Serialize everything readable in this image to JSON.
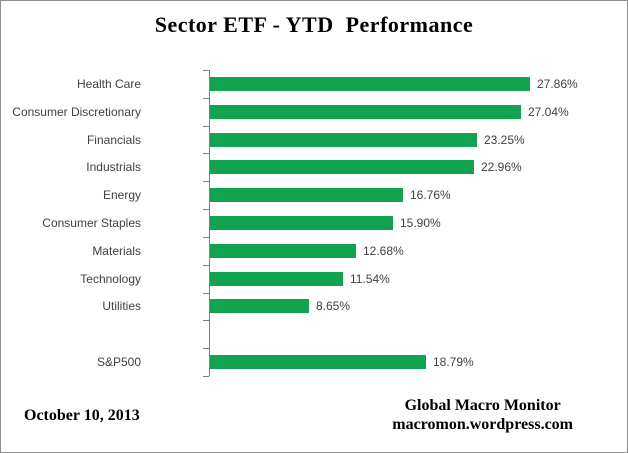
{
  "frame": {
    "background": "#ffffff",
    "border_color": "#8f8f8f"
  },
  "chart_data": {
    "type": "bar",
    "orientation": "horizontal",
    "title": "Sector ETF - YTD  Performance",
    "categories": [
      "Health Care",
      "Consumer Discretionary",
      "Financials",
      "Industrials",
      "Energy",
      "Consumer Staples",
      "Materials",
      "Technology",
      "Utilities",
      "",
      "S&P500"
    ],
    "values": [
      27.86,
      27.04,
      23.25,
      22.96,
      16.76,
      15.9,
      12.68,
      11.54,
      8.65,
      null,
      18.79
    ],
    "value_labels": [
      "27.86%",
      "27.04%",
      "23.25%",
      "22.96%",
      "16.76%",
      "15.90%",
      "12.68%",
      "11.54%",
      "8.65%",
      "",
      "18.79%"
    ],
    "xlim": [
      0,
      35
    ],
    "grid": false,
    "legend": false,
    "bar_color": "#12a351",
    "axis_color": "#808080",
    "label_color": "#404040"
  },
  "footer": {
    "date": "October 10, 2013",
    "source_line1": "Global Macro Monitor",
    "source_line2": "macromon.wordpress.com"
  }
}
